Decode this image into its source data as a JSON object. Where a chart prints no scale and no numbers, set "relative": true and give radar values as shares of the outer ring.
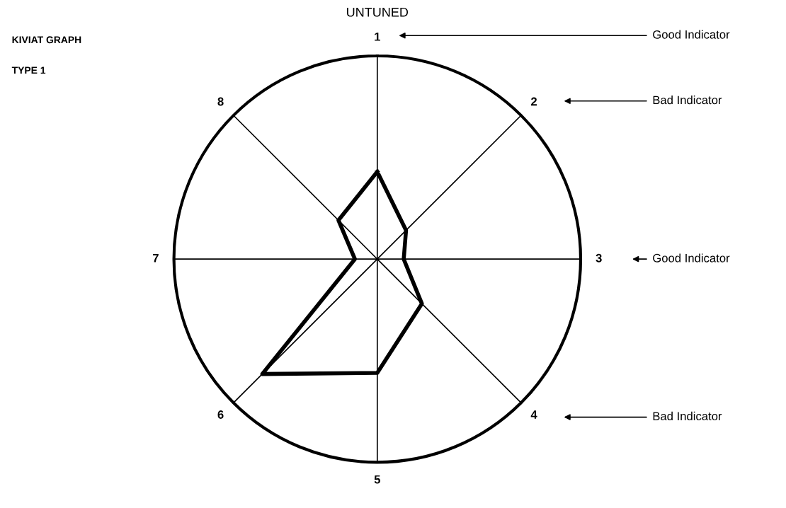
{
  "chart_data": {
    "type": "radar",
    "title": "UNTUNED",
    "relative": true,
    "categories": [
      "1",
      "2",
      "3",
      "4",
      "5",
      "6",
      "7",
      "8"
    ],
    "series": [
      {
        "color": "#000000",
        "values": [
          0.43,
          0.2,
          0.13,
          0.31,
          0.56,
          0.8,
          0.11,
          0.27
        ]
      }
    ],
    "grid": true,
    "marker": "none",
    "line_style": "solid",
    "annotations": [
      {
        "text": "Good Indicator",
        "x": "1"
      },
      {
        "text": "Bad Indicator",
        "x": "2"
      },
      {
        "text": "Good Indicator",
        "x": "3"
      },
      {
        "text": "Bad Indicator",
        "x": "4"
      },
      "KIVIAT GRAPH",
      "TYPE 1"
    ]
  }
}
